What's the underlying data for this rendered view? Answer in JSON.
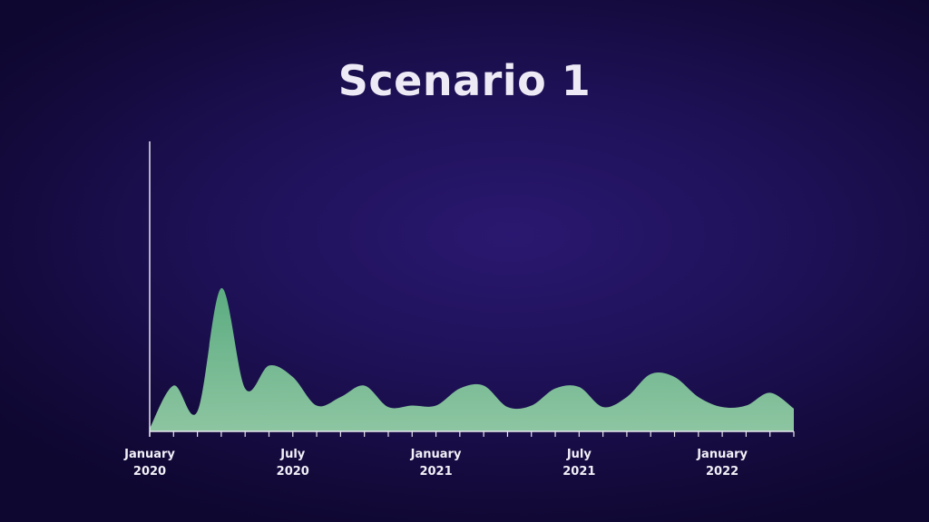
{
  "chart_data": {
    "type": "area",
    "title": "Scenario 1",
    "xlabel": "",
    "ylabel": "",
    "y_axis_ticks_shown": false,
    "grid": false,
    "legend": "none",
    "colors": {
      "fill": "#7fc79b",
      "axis": "#e8e6f0",
      "background": "#1e1157"
    },
    "x_tick_labels": [
      {
        "month": "January",
        "year": "2020",
        "date": "2020-01"
      },
      {
        "month": "July",
        "year": "2020",
        "date": "2020-07"
      },
      {
        "month": "January",
        "year": "2021",
        "date": "2021-01"
      },
      {
        "month": "July",
        "year": "2021",
        "date": "2021-07"
      },
      {
        "month": "January",
        "year": "2022",
        "date": "2022-01"
      }
    ],
    "x_range": [
      "2020-01",
      "2022-04"
    ],
    "y_range": [
      0,
      100
    ],
    "series": [
      {
        "values": [
          {
            "date": "2020-01",
            "y": 2
          },
          {
            "date": "2020-02",
            "y": 32
          },
          {
            "date": "2020-03",
            "y": 14
          },
          {
            "date": "2020-04",
            "y": 100
          },
          {
            "date": "2020-05",
            "y": 30
          },
          {
            "date": "2020-06",
            "y": 46
          },
          {
            "date": "2020-07",
            "y": 38
          },
          {
            "date": "2020-08",
            "y": 18
          },
          {
            "date": "2020-09",
            "y": 24
          },
          {
            "date": "2020-10",
            "y": 32
          },
          {
            "date": "2020-11",
            "y": 17
          },
          {
            "date": "2020-12",
            "y": 18
          },
          {
            "date": "2021-01",
            "y": 18
          },
          {
            "date": "2021-02",
            "y": 30
          },
          {
            "date": "2021-03",
            "y": 32
          },
          {
            "date": "2021-04",
            "y": 17
          },
          {
            "date": "2021-05",
            "y": 18
          },
          {
            "date": "2021-06",
            "y": 30
          },
          {
            "date": "2021-07",
            "y": 31
          },
          {
            "date": "2021-08",
            "y": 17
          },
          {
            "date": "2021-09",
            "y": 24
          },
          {
            "date": "2021-10",
            "y": 40
          },
          {
            "date": "2021-11",
            "y": 38
          },
          {
            "date": "2021-12",
            "y": 24
          },
          {
            "date": "2022-01",
            "y": 17
          },
          {
            "date": "2022-02",
            "y": 18
          },
          {
            "date": "2022-03",
            "y": 27
          },
          {
            "date": "2022-04",
            "y": 16
          }
        ]
      }
    ]
  }
}
